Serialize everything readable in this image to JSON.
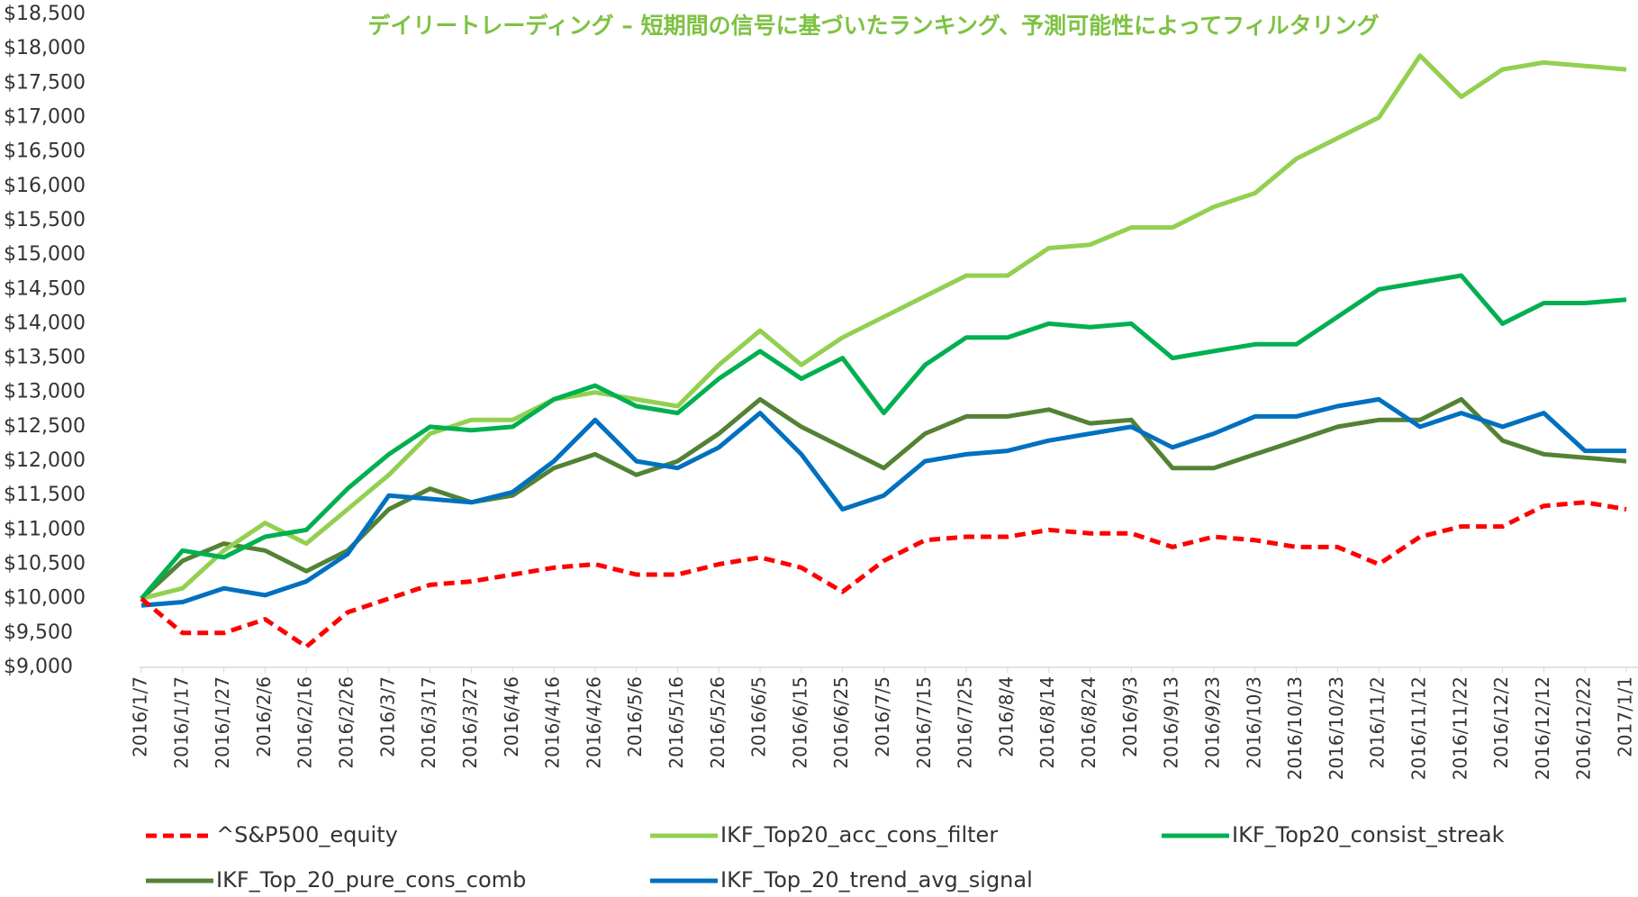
{
  "chart_data": {
    "type": "line",
    "title": "デイリートレーディング – 短期間の信号に基づいたランキング、予測可能性によってフィルタリング",
    "categories": [
      "2016/1/7",
      "2016/1/17",
      "2016/1/27",
      "2016/2/6",
      "2016/2/16",
      "2016/2/26",
      "2016/3/7",
      "2016/3/17",
      "2016/3/27",
      "2016/4/6",
      "2016/4/16",
      "2016/4/26",
      "2016/5/6",
      "2016/5/16",
      "2016/5/26",
      "2016/6/5",
      "2016/6/15",
      "2016/6/25",
      "2016/7/5",
      "2016/7/15",
      "2016/7/25",
      "2016/8/4",
      "2016/8/14",
      "2016/8/24",
      "2016/9/3",
      "2016/9/13",
      "2016/9/23",
      "2016/10/3",
      "2016/10/13",
      "2016/10/23",
      "2016/11/2",
      "2016/11/12",
      "2016/11/22",
      "2016/12/2",
      "2016/12/12",
      "2016/12/22",
      "2017/1/1"
    ],
    "series": [
      {
        "name": "^S&P500_equity",
        "color": "#ff0000",
        "dashed": true,
        "values": [
          10000,
          9500,
          9500,
          9700,
          9300,
          9800,
          10000,
          10200,
          10250,
          10350,
          10450,
          10500,
          10350,
          10350,
          10500,
          10600,
          10450,
          10100,
          10550,
          10850,
          10900,
          10900,
          11000,
          10950,
          10950,
          10750,
          10900,
          10850,
          10750,
          10750,
          10500,
          10900,
          11050,
          11050,
          11350,
          11400,
          11300
        ]
      },
      {
        "name": "IKF_Top20_acc_cons_filter",
        "color": "#92d050",
        "values": [
          10000,
          10150,
          10700,
          11100,
          10800,
          11300,
          11800,
          12400,
          12600,
          12600,
          12900,
          13000,
          12900,
          12800,
          13400,
          13900,
          13400,
          13800,
          14100,
          14400,
          14700,
          14700,
          15100,
          15150,
          15400,
          15400,
          15700,
          15900,
          16400,
          16700,
          17000,
          17900,
          17300,
          17700,
          17800,
          17750,
          17700
        ]
      },
      {
        "name": "IKF_Top20_consist_streak",
        "color": "#00b050",
        "values": [
          10000,
          10700,
          10600,
          10900,
          11000,
          11600,
          12100,
          12500,
          12450,
          12500,
          12900,
          13100,
          12800,
          12700,
          13200,
          13600,
          13200,
          13500,
          12700,
          13400,
          13800,
          13800,
          14000,
          13950,
          14000,
          13500,
          13600,
          13700,
          13700,
          14100,
          14500,
          14600,
          14700,
          14000,
          14300,
          14300,
          14350
        ]
      },
      {
        "name": "IKF_Top_20_pure_cons_comb",
        "color": "#548235",
        "values": [
          10000,
          10550,
          10800,
          10700,
          10400,
          10700,
          11300,
          11600,
          11400,
          11500,
          11900,
          12100,
          11800,
          12000,
          12400,
          12900,
          12500,
          12200,
          11900,
          12400,
          12650,
          12650,
          12750,
          12550,
          12600,
          11900,
          11900,
          12100,
          12300,
          12500,
          12600,
          12600,
          12900,
          12300,
          12100,
          12050,
          12000
        ]
      },
      {
        "name": "IKF_Top_20_trend_avg_signal",
        "color": "#0070c0",
        "values": [
          9900,
          9950,
          10150,
          10050,
          10250,
          10650,
          11500,
          11450,
          11400,
          11550,
          12000,
          12600,
          12000,
          11900,
          12200,
          12700,
          12100,
          11300,
          11500,
          12000,
          12100,
          12150,
          12300,
          12400,
          12500,
          12200,
          12400,
          12650,
          12650,
          12800,
          12900,
          12500,
          12700,
          12500,
          12700,
          12150,
          12150
        ]
      }
    ],
    "ylim": [
      9000,
      18500
    ],
    "yticks": [
      {
        "value": 9000,
        "label": "$9,000"
      },
      {
        "value": 9500,
        "label": "$9,500"
      },
      {
        "value": 10000,
        "label": "$10,000"
      },
      {
        "value": 10500,
        "label": "$10,500"
      },
      {
        "value": 11000,
        "label": "$11,000"
      },
      {
        "value": 11500,
        "label": "$11,500"
      },
      {
        "value": 12000,
        "label": "$12,000"
      },
      {
        "value": 12500,
        "label": "$12,500"
      },
      {
        "value": 13000,
        "label": "$13,000"
      },
      {
        "value": 13500,
        "label": "$13,500"
      },
      {
        "value": 14000,
        "label": "$14,000"
      },
      {
        "value": 14500,
        "label": "$14,500"
      },
      {
        "value": 15000,
        "label": "$15,000"
      },
      {
        "value": 15500,
        "label": "$15,500"
      },
      {
        "value": 16000,
        "label": "$16,000"
      },
      {
        "value": 16500,
        "label": "$16,500"
      },
      {
        "value": 17000,
        "label": "$17,000"
      },
      {
        "value": 17500,
        "label": "$17,500"
      },
      {
        "value": 18000,
        "label": "$18,000"
      },
      {
        "value": 18500,
        "label": "$18,500"
      }
    ],
    "title_color": "#7dc242"
  }
}
